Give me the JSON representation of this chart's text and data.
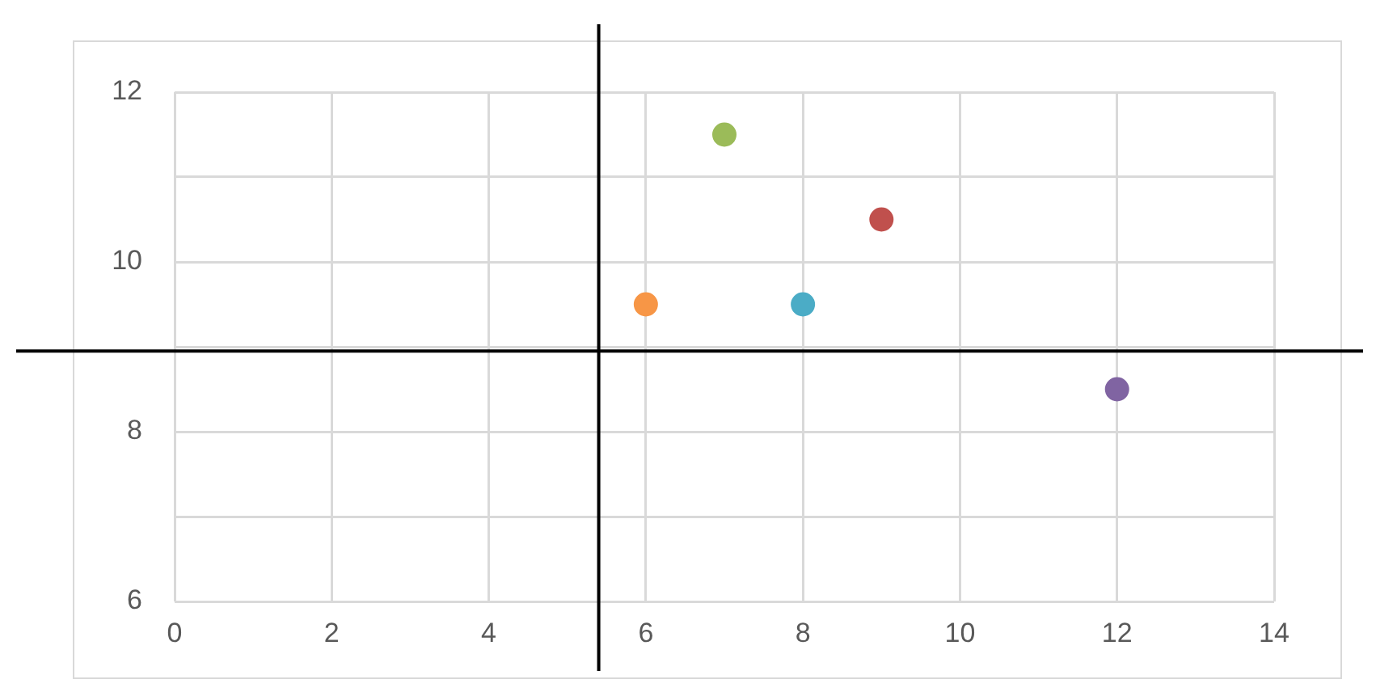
{
  "chart_data": {
    "type": "scatter",
    "x": [
      6,
      7,
      8,
      9,
      12
    ],
    "series": [
      {
        "values": [
          9.5,
          11.5,
          9.5,
          10.5,
          8.5
        ],
        "colors": [
          "#f79646",
          "#9bbb59",
          "#4bacc6",
          "#c0504d",
          "#8064a2"
        ]
      }
    ],
    "xlim": [
      0,
      14
    ],
    "xticks": [
      0,
      2,
      4,
      6,
      8,
      10,
      12,
      14
    ],
    "ylim": [
      6,
      12
    ],
    "yticks": [
      6,
      {
        "value": 7,
        "label": null
      },
      8,
      {
        "value": 9,
        "label": null
      },
      10,
      {
        "value": 11,
        "label": null
      },
      12
    ],
    "ref_lines": [
      {
        "axis": "x",
        "value": 5.4,
        "color": "#000000"
      },
      {
        "axis": "y",
        "value": 8.95,
        "color": "#000000"
      }
    ],
    "grid": true,
    "marker": "circle",
    "legend": false
  }
}
